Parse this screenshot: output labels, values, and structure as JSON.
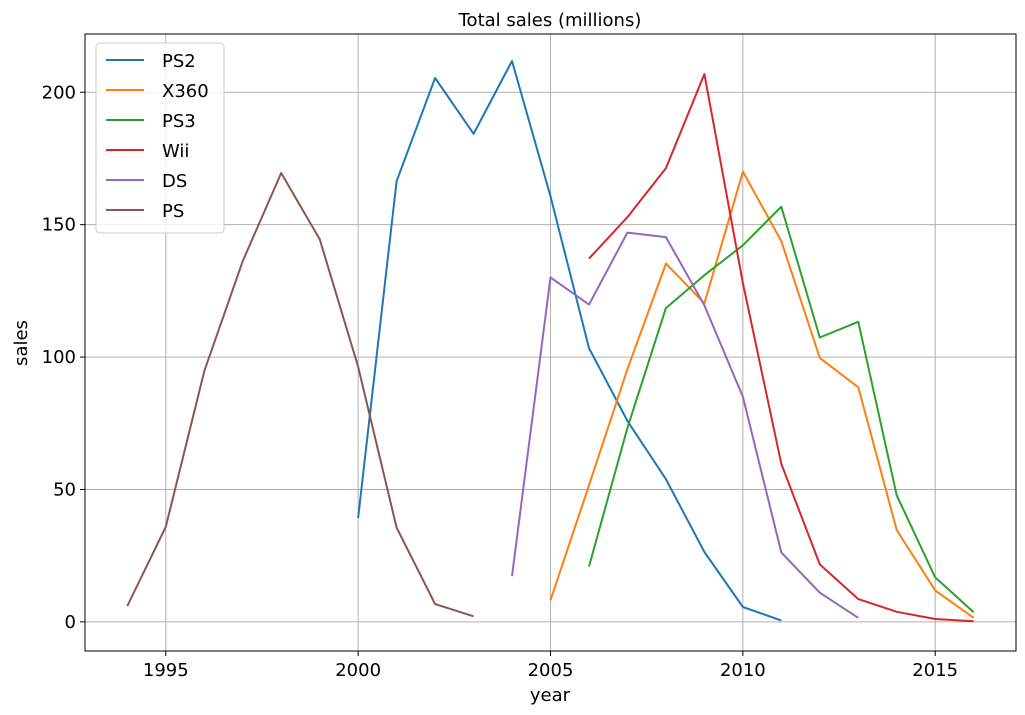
{
  "chart_data": {
    "type": "line",
    "title": "Total sales (millions)",
    "xlabel": "year",
    "ylabel": "sales",
    "xlim": [
      1992.9,
      2017.1
    ],
    "ylim": [
      -11,
      222
    ],
    "xticks": [
      1995,
      2000,
      2005,
      2010,
      2015
    ],
    "yticks": [
      0,
      50,
      100,
      150,
      200
    ],
    "grid": true,
    "legend_position": "top-left",
    "series": [
      {
        "name": "PS2",
        "color": "#1f77b4",
        "points": [
          [
            2000,
            39.2
          ],
          [
            2001,
            166.4
          ],
          [
            2002,
            205.4
          ],
          [
            2003,
            184.3
          ],
          [
            2004,
            211.8
          ],
          [
            2005,
            160.7
          ],
          [
            2006,
            103.4
          ],
          [
            2007,
            75.9
          ],
          [
            2008,
            53.9
          ],
          [
            2009,
            26.4
          ],
          [
            2010,
            5.6
          ],
          [
            2011,
            0.5
          ]
        ]
      },
      {
        "name": "X360",
        "color": "#ff7f0e",
        "points": [
          [
            2005,
            8.2
          ],
          [
            2006,
            51.6
          ],
          [
            2007,
            95.4
          ],
          [
            2008,
            135.3
          ],
          [
            2009,
            120.3
          ],
          [
            2010,
            170.0
          ],
          [
            2011,
            143.8
          ],
          [
            2012,
            99.7
          ],
          [
            2013,
            88.6
          ],
          [
            2014,
            34.7
          ],
          [
            2015,
            11.9
          ],
          [
            2016,
            1.5
          ]
        ]
      },
      {
        "name": "PS3",
        "color": "#2ca02c",
        "points": [
          [
            2006,
            20.9
          ],
          [
            2007,
            73.2
          ],
          [
            2008,
            118.5
          ],
          [
            2009,
            130.9
          ],
          [
            2010,
            142.2
          ],
          [
            2011,
            156.8
          ],
          [
            2012,
            107.4
          ],
          [
            2013,
            113.3
          ],
          [
            2014,
            47.8
          ],
          [
            2015,
            16.8
          ],
          [
            2016,
            3.6
          ]
        ]
      },
      {
        "name": "Wii",
        "color": "#d62728",
        "points": [
          [
            2006,
            137.2
          ],
          [
            2007,
            152.8
          ],
          [
            2008,
            171.3
          ],
          [
            2009,
            206.9
          ],
          [
            2010,
            127.9
          ],
          [
            2011,
            59.7
          ],
          [
            2012,
            21.7
          ],
          [
            2013,
            8.6
          ],
          [
            2014,
            3.8
          ],
          [
            2015,
            1.1
          ],
          [
            2016,
            0.2
          ]
        ]
      },
      {
        "name": "DS",
        "color": "#9467bd",
        "points": [
          [
            2004,
            17.3
          ],
          [
            2005,
            130.1
          ],
          [
            2006,
            119.8
          ],
          [
            2007,
            147.0
          ],
          [
            2008,
            145.3
          ],
          [
            2009,
            119.5
          ],
          [
            2010,
            85.0
          ],
          [
            2011,
            26.2
          ],
          [
            2012,
            11.0
          ],
          [
            2013,
            1.5
          ]
        ]
      },
      {
        "name": "PS",
        "color": "#8c564b",
        "points": [
          [
            1994,
            6.0
          ],
          [
            1995,
            35.9
          ],
          [
            1996,
            94.7
          ],
          [
            1997,
            136.2
          ],
          [
            1998,
            169.5
          ],
          [
            1999,
            144.5
          ],
          [
            2000,
            96.4
          ],
          [
            2001,
            35.6
          ],
          [
            2002,
            6.7
          ],
          [
            2003,
            2.1
          ]
        ]
      }
    ]
  }
}
